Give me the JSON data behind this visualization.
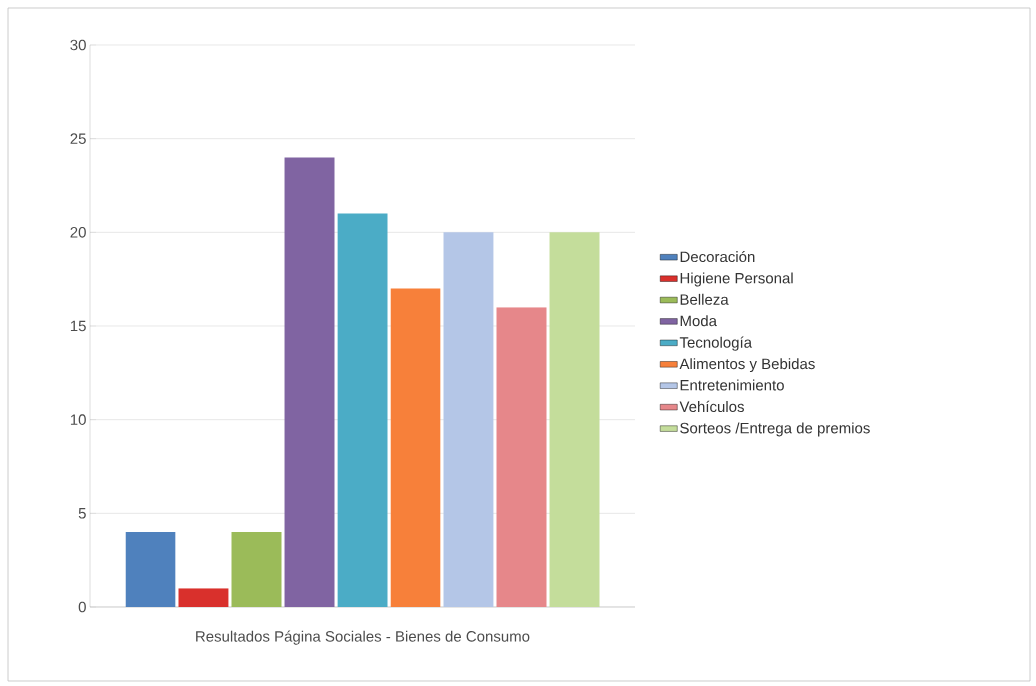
{
  "chart_data": {
    "type": "bar",
    "categories": [
      "Resultados Página Sociales - Bienes de Consumo"
    ],
    "series": [
      {
        "name": "Decoración",
        "color": "#4f81bd",
        "values": [
          4
        ]
      },
      {
        "name": "Higiene Personal",
        "color": "#d9302c",
        "values": [
          1
        ]
      },
      {
        "name": "Belleza",
        "color": "#9bbb59",
        "values": [
          4
        ]
      },
      {
        "name": "Moda",
        "color": "#8064a2",
        "values": [
          24
        ]
      },
      {
        "name": "Tecnología",
        "color": "#4bacc6",
        "values": [
          21
        ]
      },
      {
        "name": "Alimentos y Bebidas",
        "color": "#f7803a",
        "values": [
          17
        ]
      },
      {
        "name": "Entretenimiento",
        "color": "#b4c6e7",
        "values": [
          20
        ]
      },
      {
        "name": "Vehículos",
        "color": "#e6878a",
        "values": [
          16
        ]
      },
      {
        "name": "Sorteos /Entrega de premios",
        "color": "#c4dd9b",
        "values": [
          20
        ]
      }
    ],
    "ylim": [
      0,
      30
    ],
    "yticks": [
      0,
      5,
      10,
      15,
      20,
      25,
      30
    ],
    "grid": "y",
    "legend": "right"
  }
}
